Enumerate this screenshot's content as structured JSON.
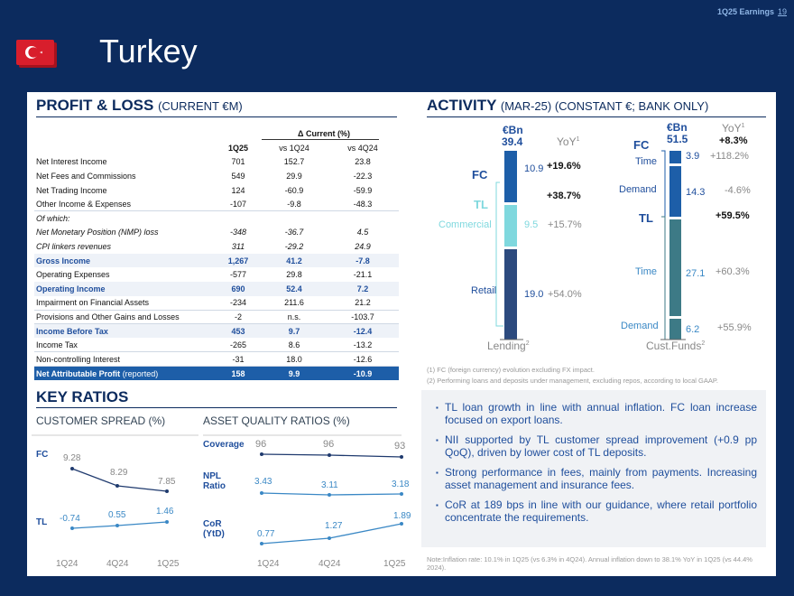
{
  "header": {
    "tag": "1Q25 Earnings",
    "page": "19",
    "title": "Turkey"
  },
  "pl": {
    "title": "PROFIT & LOSS",
    "subtitle": "(CURRENT €M)",
    "delta_header": "Δ Current (%)",
    "cols": [
      "1Q25",
      "vs 1Q24",
      "vs 4Q24"
    ],
    "rows": [
      [
        "Net Interest Income",
        "701",
        "152.7",
        "23.8"
      ],
      [
        "Net Fees and Commissions",
        "549",
        "29.9",
        "-22.3"
      ],
      [
        "Net Trading Income",
        "124",
        "-60.9",
        "-59.9"
      ],
      [
        "Other Income & Expenses",
        "-107",
        "-9.8",
        "-48.3"
      ],
      [
        "Of which:",
        "",
        "",
        ""
      ],
      [
        "Net Monetary Position (NMP) loss",
        "-348",
        "-36.7",
        "4.5"
      ],
      [
        "CPI linkers revenues",
        "311",
        "-29.2",
        "24.9"
      ],
      [
        "Gross Income",
        "1,267",
        "41.2",
        "-7.8"
      ],
      [
        "Operating Expenses",
        "-577",
        "29.8",
        "-21.1"
      ],
      [
        "Operating Income",
        "690",
        "52.4",
        "7.2"
      ],
      [
        "Impairment on Financial Assets",
        "-234",
        "211.6",
        "21.2"
      ],
      [
        "Provisions and Other Gains and Losses",
        "-2",
        "n.s.",
        "-103.7"
      ],
      [
        "Income Before Tax",
        "453",
        "9.7",
        "-12.4"
      ],
      [
        "Income Tax",
        "-265",
        "8.6",
        "-13.2"
      ],
      [
        "Non-controlling Interest",
        "-31",
        "18.0",
        "-12.6"
      ],
      [
        "Net Attributable Profit",
        "158",
        "9.9",
        "-10.9"
      ]
    ],
    "last_suffix": "(reported)"
  },
  "ratios": {
    "title": "KEY RATIOS",
    "spread_title": "CUSTOMER SPREAD (%)",
    "aq_title": "ASSET QUALITY RATIOS (%)",
    "x": [
      "1Q24",
      "4Q24",
      "1Q25"
    ],
    "fc_label": "FC",
    "fc": [
      "9.28",
      "8.29",
      "7.85"
    ],
    "tl_label": "TL",
    "tl": [
      "-0.74",
      "0.55",
      "1.46"
    ],
    "coverage_label": "Coverage",
    "coverage": [
      "96",
      "96",
      "93"
    ],
    "npl_label": "NPL Ratio",
    "npl": [
      "3.43",
      "3.11",
      "3.18"
    ],
    "cor_label": "CoR (YtD)",
    "cor": [
      "0.77",
      "1.27",
      "1.89"
    ]
  },
  "activity": {
    "title": "ACTIVITY",
    "subtitle": "(MAR-25) (CONSTANT €; BANK ONLY)",
    "left": {
      "unit": "€Bn",
      "total": "39.4",
      "yoy": "YoY",
      "sup": "1",
      "fc": "FC",
      "fc_val": "10.9",
      "fc_yoy": "+19.6%",
      "tl": "TL",
      "tl_yoy": "+38.7%",
      "comm": "Commercial",
      "comm_val": "9.5",
      "comm_yoy": "+15.7%",
      "retail": "Retail",
      "retail_val": "19.0",
      "retail_yoy": "+54.0%",
      "caption": "Lending",
      "cap_sup": "2"
    },
    "right": {
      "unit": "€Bn",
      "total": "51.5",
      "yoy": "YoY",
      "sup": "1",
      "fc": "FC",
      "fc_yoy": "+8.3%",
      "fct": "Time",
      "fct_val": "3.9",
      "fct_yoy": "+118.2%",
      "fcd": "Demand",
      "fcd_val": "14.3",
      "fcd_yoy": "-4.6%",
      "tl": "TL",
      "tl_yoy": "+59.5%",
      "tlt": "Time",
      "tlt_val": "27.1",
      "tlt_yoy": "+60.3%",
      "tld": "Demand",
      "tld_val": "6.2",
      "tld_yoy": "+55.9%",
      "caption": "Cust.Funds",
      "cap_sup": "2"
    },
    "notes": [
      "(1) FC (foreign currency) evolution excluding FX impact.",
      "(2) Performing loans and deposits under management, excluding repos, according to local GAAP."
    ]
  },
  "bullets": [
    "TL loan growth in line with annual inflation. FC  loan increase focused on export loans.",
    "NII supported by  TL  customer spread improvement (+0.9 pp QoQ), driven by lower cost of TL deposits.",
    "Strong performance in fees, mainly from payments. Increasing asset management and insurance fees.",
    "CoR at 189 bps in line with our guidance, where retail portfolio concentrate the requirements."
  ],
  "footnote": "Note:Inflation rate: 10.1% in 1Q25 (vs 6.3% in 4Q24). Annual inflation down to 38.1% YoY in 1Q25 (vs 44.4% 2024)."
}
